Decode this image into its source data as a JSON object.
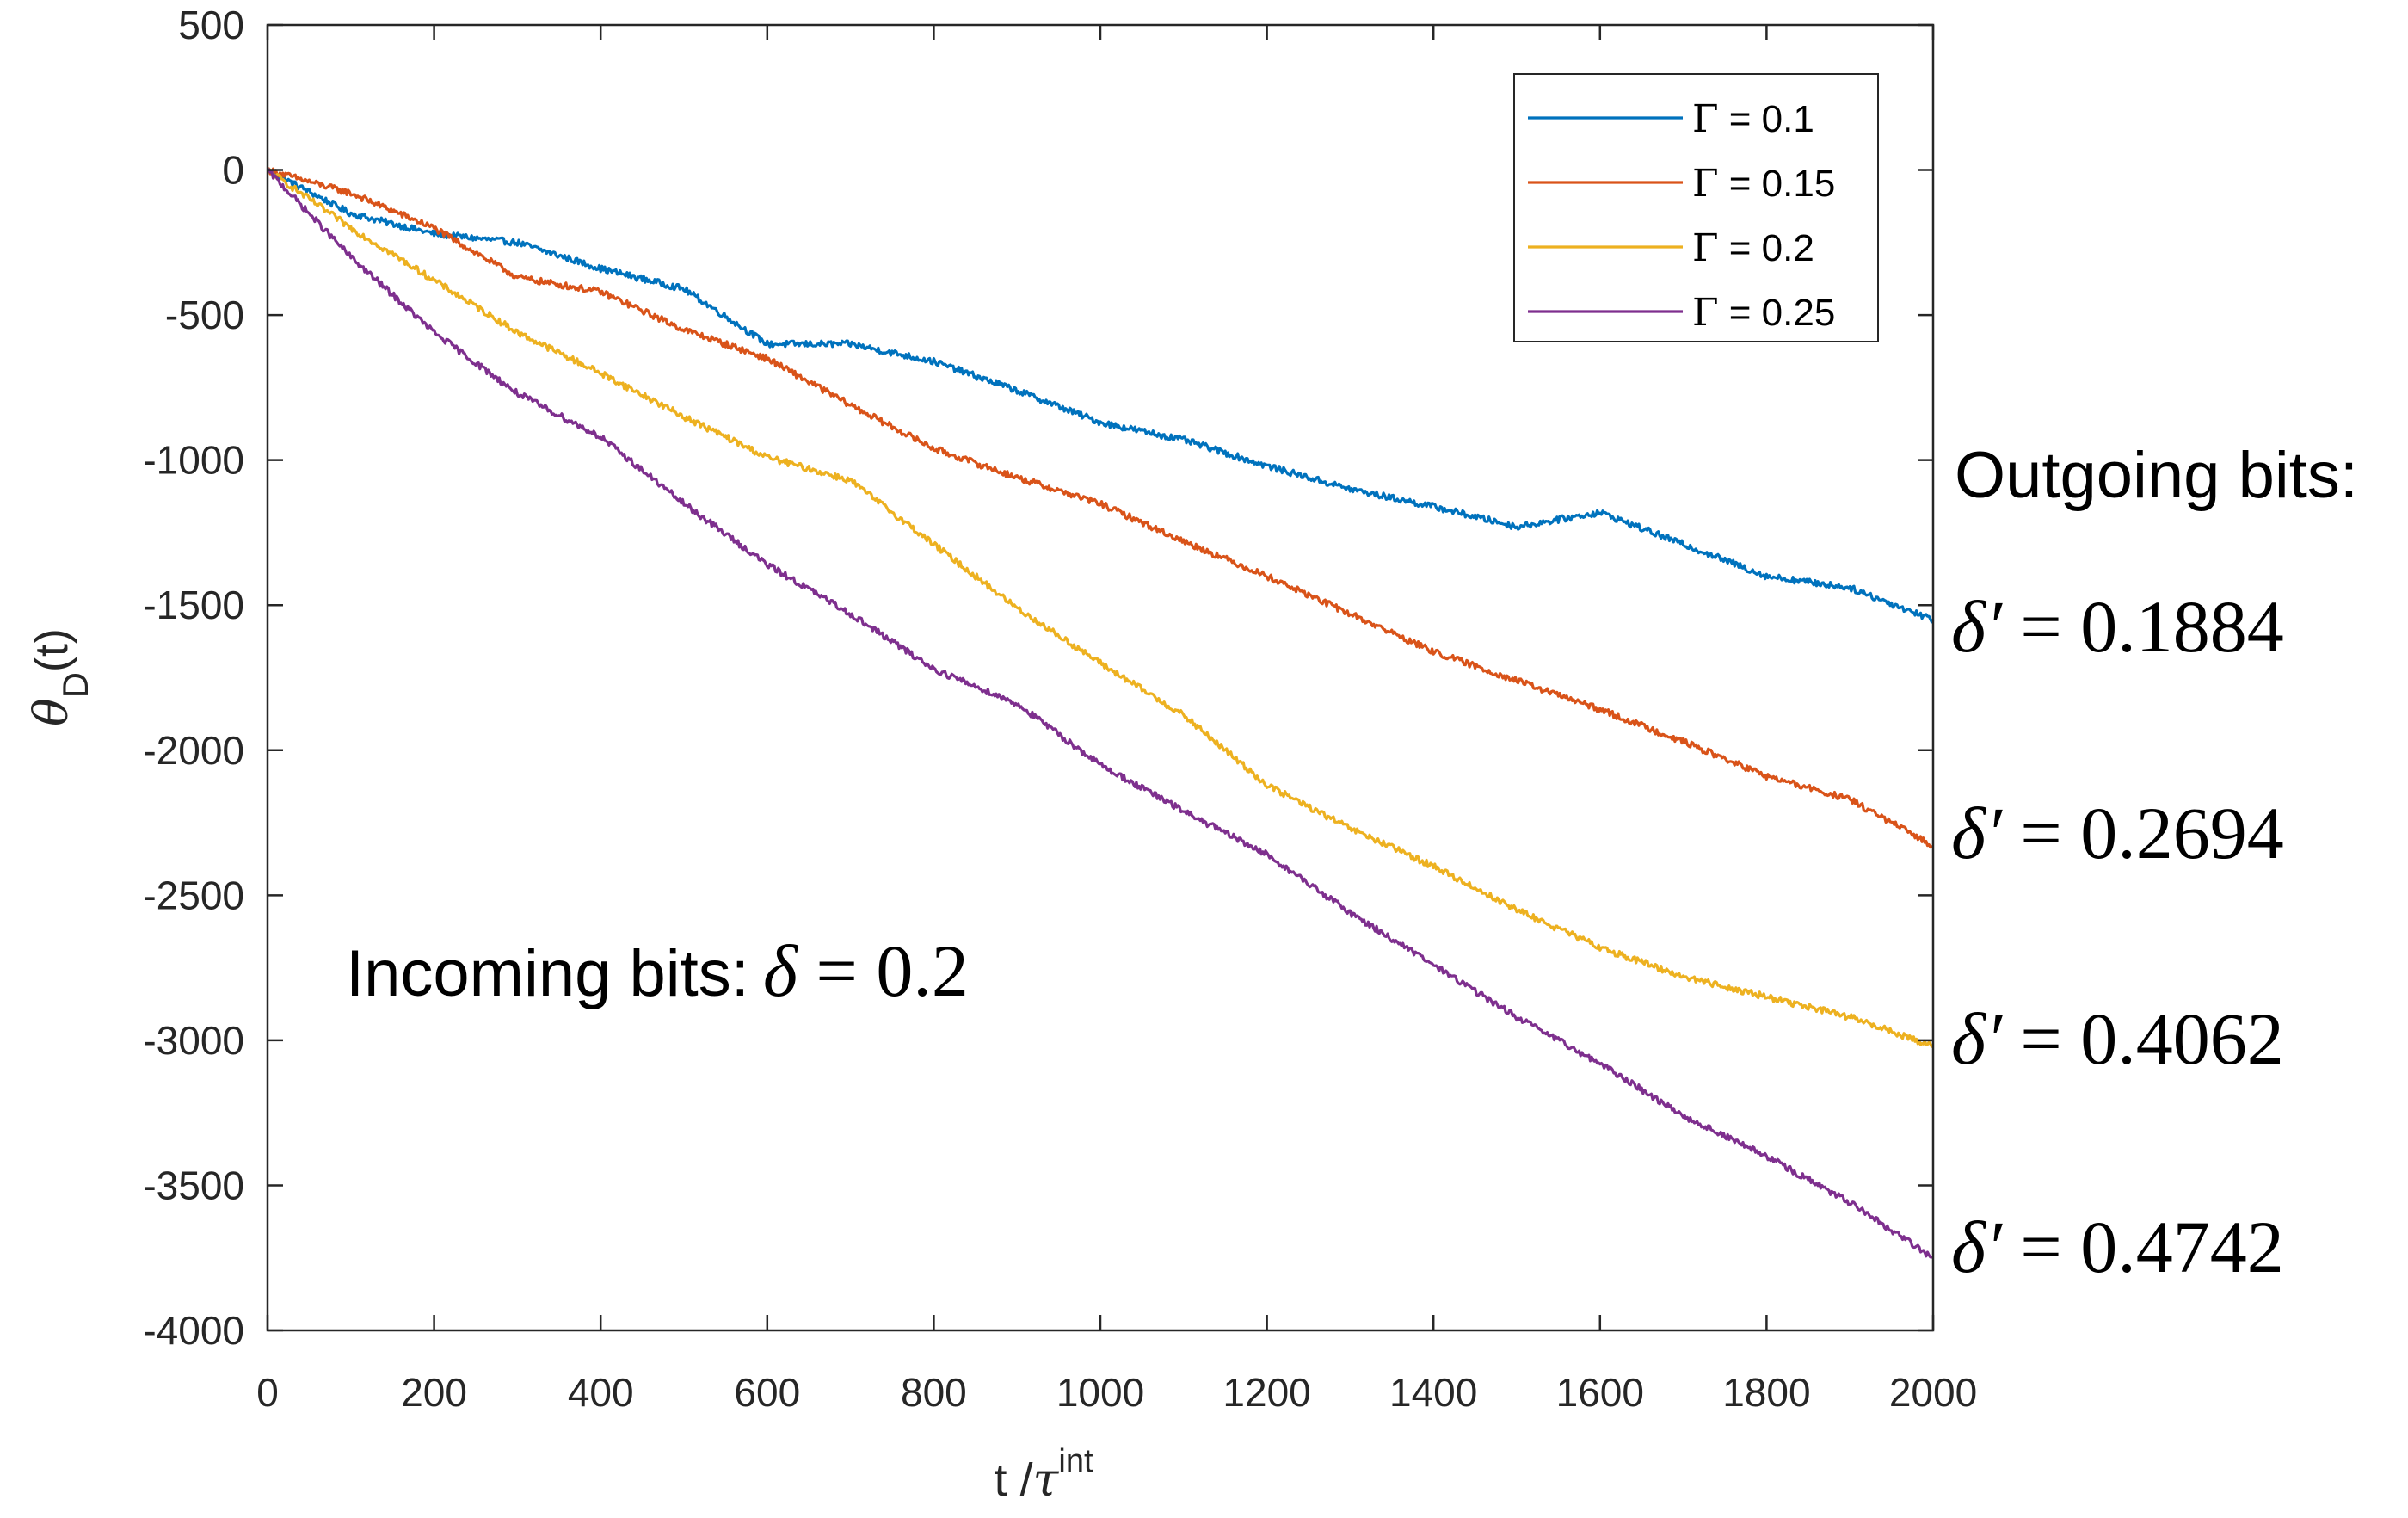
{
  "chart_data": {
    "type": "line",
    "title": "",
    "xlabel": "t /",
    "xlabel_greek": "τ",
    "xlabel_sup": "int",
    "ylabel": "θ",
    "ylabel_sub": "D",
    "ylabel_suffix": "(t)",
    "xlim": [
      0,
      2000
    ],
    "ylim": [
      -4000,
      500
    ],
    "xticks": [
      0,
      200,
      400,
      600,
      800,
      1000,
      1200,
      1400,
      1600,
      1800,
      2000
    ],
    "xtick_labels": [
      "0",
      "200",
      "400",
      "600",
      "800",
      "1000",
      "1200",
      "1400",
      "1600",
      "1800",
      "2000"
    ],
    "yticks": [
      500,
      0,
      -500,
      -1000,
      -1500,
      -2000,
      -2500,
      -3000,
      -3500,
      -4000
    ],
    "ytick_labels": [
      "500",
      "0",
      "-500",
      "-1000",
      "-1500",
      "-2000",
      "-2500",
      "-3000",
      "-3500",
      "-4000"
    ],
    "grid": false,
    "legend_position": "top-right",
    "series": [
      {
        "name": "Γ = 0.1",
        "label_greek": "Γ",
        "label_rest": " = 0.1",
        "color": "#0072BD",
        "x": [
          0,
          100,
          200,
          300,
          400,
          500,
          600,
          700,
          800,
          900,
          1000,
          1100,
          1200,
          1300,
          1400,
          1500,
          1600,
          1700,
          1800,
          1900,
          2000
        ],
        "y": [
          0,
          -150,
          -220,
          -250,
          -340,
          -410,
          -600,
          -600,
          -660,
          -760,
          -870,
          -930,
          -1020,
          -1100,
          -1160,
          -1230,
          -1180,
          -1290,
          -1400,
          -1440,
          -1550
        ]
      },
      {
        "name": "Γ = 0.15",
        "label_greek": "Γ",
        "label_rest": " = 0.15",
        "color": "#D95319",
        "x": [
          0,
          100,
          200,
          300,
          400,
          500,
          600,
          700,
          800,
          900,
          1000,
          1100,
          1200,
          1300,
          1400,
          1500,
          1600,
          1700,
          1800,
          1900,
          2000
        ],
        "y": [
          0,
          -80,
          -200,
          -370,
          -420,
          -550,
          -650,
          -810,
          -960,
          -1060,
          -1150,
          -1280,
          -1400,
          -1530,
          -1660,
          -1760,
          -1860,
          -1970,
          -2090,
          -2170,
          -2330
        ]
      },
      {
        "name": "Γ = 0.2",
        "label_greek": "Γ",
        "label_rest": " = 0.2",
        "color": "#EDB120",
        "x": [
          0,
          100,
          200,
          300,
          400,
          500,
          600,
          700,
          800,
          900,
          1000,
          1100,
          1200,
          1300,
          1400,
          1500,
          1600,
          1700,
          1800,
          1900,
          2000
        ],
        "y": [
          0,
          -200,
          -380,
          -560,
          -700,
          -850,
          -990,
          -1070,
          -1290,
          -1510,
          -1700,
          -1880,
          -2120,
          -2270,
          -2400,
          -2550,
          -2680,
          -2780,
          -2850,
          -2920,
          -3020
        ]
      },
      {
        "name": "Γ = 0.25",
        "label_greek": "Γ",
        "label_rest": " = 0.25",
        "color": "#7E2F8E",
        "x": [
          0,
          100,
          200,
          300,
          400,
          500,
          600,
          700,
          800,
          900,
          1000,
          1100,
          1200,
          1300,
          1400,
          1500,
          1600,
          1700,
          1800,
          1900,
          2000
        ],
        "y": [
          0,
          -300,
          -560,
          -770,
          -920,
          -1150,
          -1360,
          -1530,
          -1720,
          -1840,
          -2050,
          -2210,
          -2360,
          -2560,
          -2740,
          -2920,
          -3080,
          -3260,
          -3400,
          -3560,
          -3750
        ]
      }
    ],
    "annotations": {
      "incoming_label": "Incoming bits:",
      "incoming_math_symbol": "δ",
      "incoming_math_rest": " = 0.2",
      "outgoing_label": "Outgoing bits:",
      "outgoing_values": [
        {
          "symbol": "δ′",
          "rest": " = 0.1884"
        },
        {
          "symbol": "δ′",
          "rest": " = 0.2694"
        },
        {
          "symbol": "δ′",
          "rest": " = 0.4062"
        },
        {
          "symbol": "δ′",
          "rest": " = 0.4742"
        }
      ]
    }
  }
}
